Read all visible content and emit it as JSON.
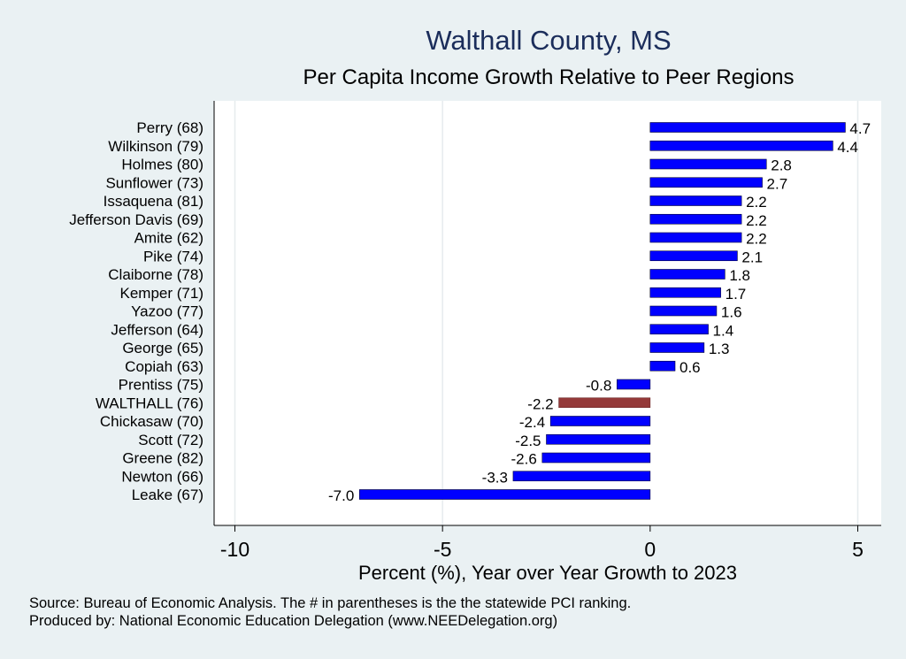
{
  "chart_data": {
    "type": "bar",
    "orientation": "horizontal",
    "title": "Walthall County, MS",
    "subtitle": "Per Capita Income Growth Relative to Peer Regions",
    "xlabel": "Percent (%), Year over Year Growth to 2023",
    "ylabel": "",
    "xlim": [
      -10,
      5
    ],
    "xticks": [
      -10,
      -5,
      0,
      5
    ],
    "grid": true,
    "categories": [
      "Perry (68)",
      "Wilkinson (79)",
      "Holmes (80)",
      "Sunflower (73)",
      "Issaquena (81)",
      "Jefferson Davis (69)",
      "Amite (62)",
      "Pike (74)",
      "Claiborne (78)",
      "Kemper (71)",
      "Yazoo (77)",
      "Jefferson (64)",
      "George (65)",
      "Copiah (63)",
      "Prentiss (75)",
      "WALTHALL (76)",
      "Chickasaw (70)",
      "Scott (72)",
      "Greene (82)",
      "Newton (66)",
      "Leake (67)"
    ],
    "values": [
      4.7,
      4.4,
      2.8,
      2.7,
      2.2,
      2.2,
      2.2,
      2.1,
      1.8,
      1.7,
      1.6,
      1.4,
      1.3,
      0.6,
      -0.8,
      -2.2,
      -2.4,
      -2.5,
      -2.6,
      -3.3,
      -7.0
    ],
    "value_labels": [
      "4.7",
      "4.4",
      "2.8",
      "2.7",
      "2.2",
      "2.2",
      "2.2",
      "2.1",
      "1.8",
      "1.7",
      "1.6",
      "1.4",
      "1.3",
      "0.6",
      "-0.8",
      "-2.2",
      "-2.4",
      "-2.5",
      "-2.6",
      "-3.3",
      "-7.0"
    ],
    "highlight": "WALTHALL (76)",
    "colors": {
      "bar": "#0000ff",
      "highlight_bar": "#943939",
      "plot_background": "#ffffff",
      "page_background": "#eaf1f3",
      "title": "#1b2d5b"
    }
  },
  "footer": {
    "source": "Source: Bureau of Economic Analysis. The # in parentheses is the the statewide PCI ranking.",
    "credit": "Produced by: National Economic Education Delegation (www.NEEDelegation.org)"
  }
}
